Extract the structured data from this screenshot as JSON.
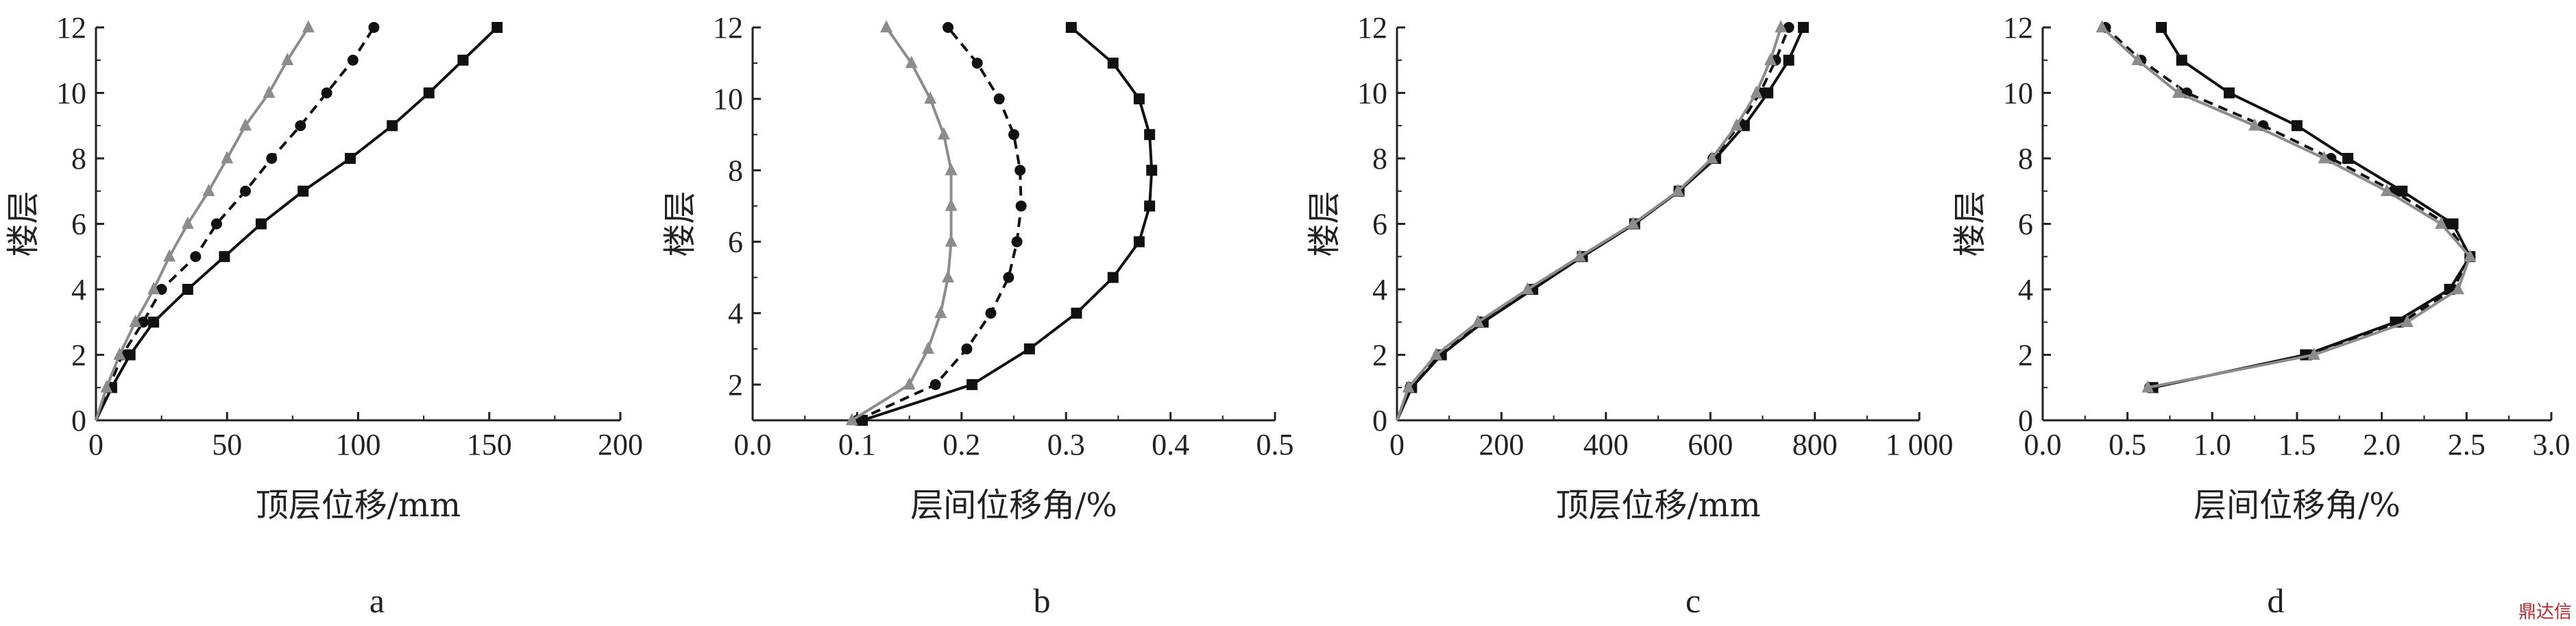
{
  "watermark": "鼎达信",
  "colors": {
    "black": "#111111",
    "gray": "#8c8c8c"
  },
  "chart_data": [
    {
      "type": "line",
      "panel_label": "a",
      "xlabel": "顶层位移/mm",
      "ylabel": "楼层",
      "xlim": [
        0,
        200
      ],
      "ylim": [
        0,
        12
      ],
      "xticks": [
        0,
        50,
        100,
        150,
        200
      ],
      "xtick_labels": [
        "0",
        "50",
        "100",
        "150",
        "200"
      ],
      "yticks": [
        0,
        2,
        4,
        6,
        8,
        10,
        12
      ],
      "ytick_labels": [
        "0",
        "2",
        "4",
        "6",
        "8",
        "10",
        "12"
      ],
      "series": [
        {
          "y": [
            0,
            1,
            2,
            3,
            4,
            5,
            6,
            7,
            8,
            9,
            10,
            11,
            12
          ],
          "x": [
            0,
            6,
            13,
            22,
            35,
            49,
            63,
            79,
            97,
            113,
            127,
            140,
            153
          ],
          "color": "#111111",
          "marker": "square",
          "dash": "solid"
        },
        {
          "y": [
            0,
            1,
            2,
            3,
            4,
            5,
            6,
            7,
            8,
            9,
            10,
            11,
            12
          ],
          "x": [
            0,
            5,
            10,
            18,
            25,
            38,
            46,
            57,
            67,
            78,
            88,
            98,
            106
          ],
          "color": "#111111",
          "marker": "circle",
          "dash": "dashed"
        },
        {
          "y": [
            0,
            1,
            2,
            3,
            4,
            5,
            6,
            7,
            8,
            9,
            10,
            11,
            12
          ],
          "x": [
            0,
            4,
            9,
            15,
            22,
            28,
            35,
            43,
            50,
            57,
            66,
            73,
            81
          ],
          "color": "#8c8c8c",
          "marker": "triangle",
          "dash": "solid"
        }
      ]
    },
    {
      "type": "line",
      "panel_label": "b",
      "xlabel": "层间位移角/%",
      "ylabel": "楼层",
      "xlim": [
        0,
        0.5
      ],
      "ylim": [
        1,
        12
      ],
      "xticks": [
        0,
        0.1,
        0.2,
        0.3,
        0.4,
        0.5
      ],
      "xtick_labels": [
        "0.0",
        "0.1",
        "0.2",
        "0.3",
        "0.4",
        "0.5"
      ],
      "yticks": [
        2,
        4,
        6,
        8,
        10,
        12
      ],
      "ytick_labels": [
        "2",
        "4",
        "6",
        "8",
        "10",
        "12"
      ],
      "series": [
        {
          "y": [
            1,
            2,
            3,
            4,
            5,
            6,
            7,
            8,
            9,
            10,
            11,
            12
          ],
          "x": [
            0.105,
            0.21,
            0.265,
            0.31,
            0.345,
            0.37,
            0.38,
            0.382,
            0.38,
            0.37,
            0.345,
            0.305
          ],
          "color": "#111111",
          "marker": "square",
          "dash": "solid"
        },
        {
          "y": [
            1,
            2,
            3,
            4,
            5,
            6,
            7,
            8,
            9,
            10,
            11,
            12
          ],
          "x": [
            0.1,
            0.175,
            0.205,
            0.228,
            0.245,
            0.253,
            0.257,
            0.256,
            0.25,
            0.236,
            0.215,
            0.187
          ],
          "color": "#111111",
          "marker": "circle",
          "dash": "dashed"
        },
        {
          "y": [
            1,
            2,
            3,
            4,
            5,
            6,
            7,
            8,
            9,
            10,
            11,
            12
          ],
          "x": [
            0.095,
            0.15,
            0.168,
            0.18,
            0.187,
            0.19,
            0.19,
            0.19,
            0.183,
            0.17,
            0.152,
            0.128
          ],
          "color": "#8c8c8c",
          "marker": "triangle",
          "dash": "solid"
        }
      ]
    },
    {
      "type": "line",
      "panel_label": "c",
      "xlabel": "顶层位移/mm",
      "ylabel": "楼层",
      "xlim": [
        0,
        1000
      ],
      "ylim": [
        0,
        12
      ],
      "xticks": [
        0,
        200,
        400,
        600,
        800,
        1000
      ],
      "xtick_labels": [
        "0",
        "200",
        "400",
        "600",
        "800",
        "1 000"
      ],
      "yticks": [
        0,
        2,
        4,
        6,
        8,
        10,
        12
      ],
      "ytick_labels": [
        "0",
        "2",
        "4",
        "6",
        "8",
        "10",
        "12"
      ],
      "series": [
        {
          "y": [
            0,
            1,
            2,
            3,
            4,
            5,
            6,
            7,
            8,
            9,
            10,
            11,
            12
          ],
          "x": [
            0,
            28,
            85,
            165,
            260,
            355,
            455,
            540,
            610,
            665,
            710,
            750,
            778
          ],
          "color": "#111111",
          "marker": "square",
          "dash": "solid"
        },
        {
          "y": [
            0,
            1,
            2,
            3,
            4,
            5,
            6,
            7,
            8,
            9,
            10,
            11,
            12
          ],
          "x": [
            0,
            25,
            80,
            160,
            255,
            355,
            455,
            540,
            605,
            655,
            695,
            725,
            750
          ],
          "color": "#111111",
          "marker": "circle",
          "dash": "dashed"
        },
        {
          "y": [
            0,
            1,
            2,
            3,
            4,
            5,
            6,
            7,
            8,
            9,
            10,
            11,
            12
          ],
          "x": [
            0,
            22,
            75,
            155,
            250,
            350,
            452,
            538,
            603,
            650,
            688,
            715,
            735
          ],
          "color": "#8c8c8c",
          "marker": "triangle",
          "dash": "solid"
        }
      ]
    },
    {
      "type": "line",
      "panel_label": "d",
      "xlabel": "层间位移角/%",
      "ylabel": "楼层",
      "xlim": [
        0,
        3.0
      ],
      "ylim": [
        0,
        12
      ],
      "xticks": [
        0,
        0.5,
        1.0,
        1.5,
        2.0,
        2.5,
        3.0
      ],
      "xtick_labels": [
        "0.0",
        "0.5",
        "1.0",
        "1.5",
        "2.0",
        "2.5",
        "3.0"
      ],
      "yticks": [
        0,
        2,
        4,
        6,
        8,
        10,
        12
      ],
      "ytick_labels": [
        "0",
        "2",
        "4",
        "6",
        "8",
        "10",
        "12"
      ],
      "series": [
        {
          "y": [
            1,
            2,
            3,
            4,
            5,
            6,
            7,
            8,
            9,
            10,
            11,
            12
          ],
          "x": [
            0.65,
            1.55,
            2.08,
            2.4,
            2.52,
            2.42,
            2.12,
            1.8,
            1.5,
            1.1,
            0.82,
            0.7
          ],
          "color": "#111111",
          "marker": "square",
          "dash": "solid"
        },
        {
          "y": [
            1,
            2,
            3,
            4,
            5,
            6,
            7,
            8,
            9,
            10,
            11,
            12
          ],
          "x": [
            0.63,
            1.58,
            2.12,
            2.42,
            2.52,
            2.38,
            2.07,
            1.7,
            1.3,
            0.85,
            0.58,
            0.37
          ],
          "color": "#111111",
          "marker": "circle",
          "dash": "dashed"
        },
        {
          "y": [
            1,
            2,
            3,
            4,
            5,
            6,
            7,
            8,
            9,
            10,
            11,
            12
          ],
          "x": [
            0.62,
            1.6,
            2.15,
            2.45,
            2.52,
            2.35,
            2.03,
            1.66,
            1.25,
            0.8,
            0.56,
            0.35
          ],
          "color": "#8c8c8c",
          "marker": "triangle",
          "dash": "solid"
        }
      ]
    }
  ]
}
